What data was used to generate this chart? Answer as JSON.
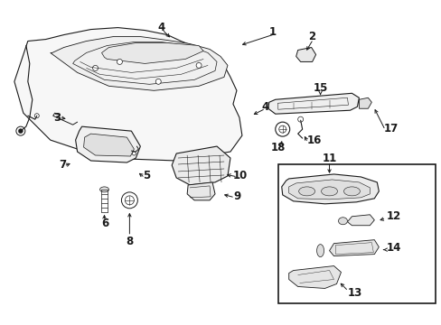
{
  "bg_color": "#ffffff",
  "line_color": "#1a1a1a",
  "fig_width": 4.89,
  "fig_height": 3.6,
  "dpi": 100,
  "label_fontsize": 8.5,
  "lw": 0.7
}
